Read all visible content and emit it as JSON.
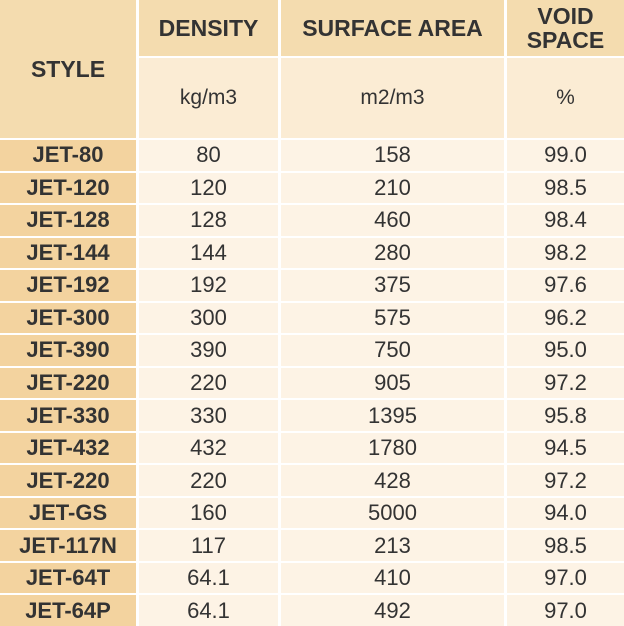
{
  "table": {
    "header": {
      "style": "STYLE",
      "columns": [
        {
          "title": "DENSITY",
          "unit": "kg/m3"
        },
        {
          "title": "SURFACE AREA",
          "unit": "m2/m3"
        },
        {
          "title": "VOID SPACE",
          "unit": "%"
        }
      ]
    },
    "rows": [
      [
        "JET-80",
        "80",
        "158",
        "99.0"
      ],
      [
        "JET-120",
        "120",
        "210",
        "98.5"
      ],
      [
        "JET-128",
        "128",
        "460",
        "98.4"
      ],
      [
        "JET-144",
        "144",
        "280",
        "98.2"
      ],
      [
        "JET-192",
        "192",
        "375",
        "97.6"
      ],
      [
        "JET-300",
        "300",
        "575",
        "96.2"
      ],
      [
        "JET-390",
        "390",
        "750",
        "95.0"
      ],
      [
        "JET-220",
        "220",
        "905",
        "97.2"
      ],
      [
        "JET-330",
        "330",
        "1395",
        "95.8"
      ],
      [
        "JET-432",
        "432",
        "1780",
        "94.5"
      ],
      [
        "JET-220",
        "220",
        "428",
        "97.2"
      ],
      [
        "JET-GS",
        "160",
        "5000",
        "94.0"
      ],
      [
        "JET-117N",
        "117",
        "213",
        "98.5"
      ],
      [
        "JET-64T",
        "64.1",
        "410",
        "97.0"
      ],
      [
        "JET-64P",
        "64.1",
        "492",
        "97.0"
      ]
    ]
  }
}
